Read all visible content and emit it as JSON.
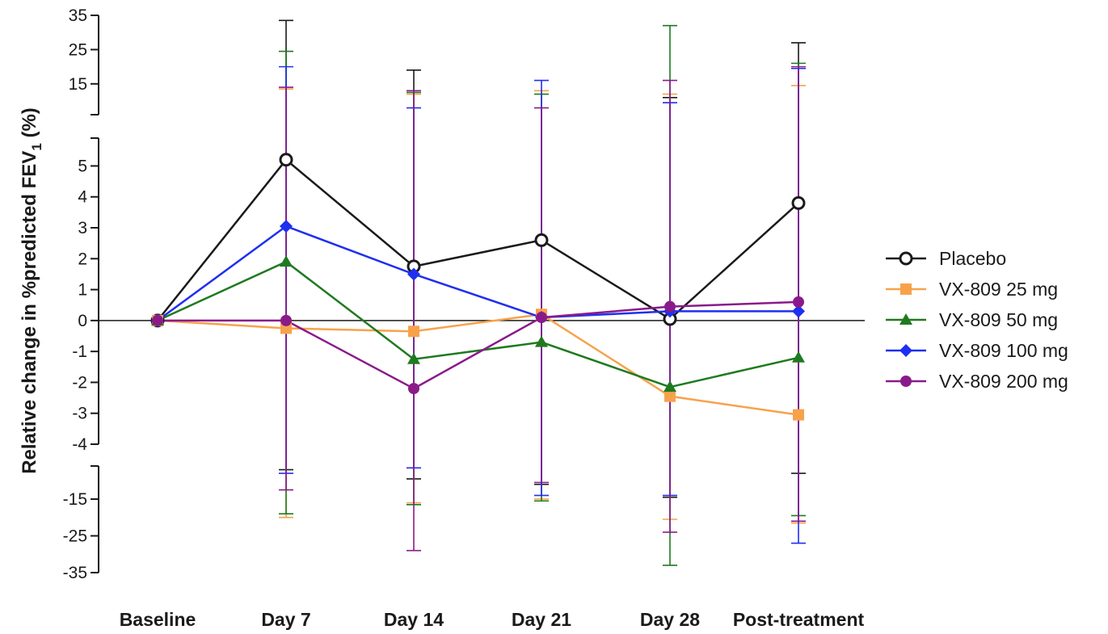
{
  "chart_data": {
    "type": "line",
    "ylabel": "Relative change in %predicted FEV",
    "ylabel_subscript": "1",
    "ylabel_suffix": " (%)",
    "categories": [
      "Baseline",
      "Day 7",
      "Day 14",
      "Day 21",
      "Day 28",
      "Post-treatment"
    ],
    "y_axis_broken": true,
    "y_segments": [
      {
        "range": [
          6,
          35
        ],
        "ticks": [
          15,
          25,
          35
        ]
      },
      {
        "range": [
          -4,
          5.9
        ],
        "ticks": [
          -4,
          -3,
          -2,
          -1,
          0,
          1,
          2,
          3,
          4,
          5
        ]
      },
      {
        "range": [
          -35,
          -6
        ],
        "ticks": [
          -15,
          -25,
          -35
        ]
      }
    ],
    "zero_line": true,
    "legend_position": "right",
    "series": [
      {
        "name": "Placebo",
        "color": "#1a1a1a",
        "marker": "open-circle",
        "values": [
          0,
          5.2,
          1.75,
          2.6,
          0.05,
          3.8
        ],
        "error_upper": [
          null,
          33.5,
          19,
          null,
          11,
          27
        ],
        "error_lower": [
          null,
          -7,
          -9.5,
          -11,
          -14.5,
          -8
        ]
      },
      {
        "name": "VX-809 25 mg",
        "color": "#f7a24b",
        "marker": "square",
        "values": [
          0,
          -0.25,
          -0.35,
          0.2,
          -2.45,
          -3.05
        ],
        "error_upper": [
          null,
          13.5,
          12,
          13,
          12,
          14.5
        ],
        "error_lower": [
          null,
          -20,
          -16,
          -15,
          -20.5,
          -21.5
        ]
      },
      {
        "name": "VX-809 50 mg",
        "color": "#1f7a1f",
        "marker": "triangle",
        "values": [
          0,
          1.9,
          -1.25,
          -0.7,
          -2.15,
          -1.2
        ],
        "error_upper": [
          null,
          24.5,
          12.5,
          12,
          32,
          21
        ],
        "error_lower": [
          null,
          -19,
          -16.5,
          -15.5,
          -33,
          -19.5
        ]
      },
      {
        "name": "VX-809 100 mg",
        "color": "#1f2ff0",
        "marker": "diamond",
        "values": [
          0,
          3.05,
          1.5,
          0.1,
          0.3,
          0.3
        ],
        "error_upper": [
          null,
          20,
          8,
          16,
          9.5,
          19.5
        ],
        "error_lower": [
          null,
          -8,
          -6.5,
          -14,
          -14,
          -27
        ]
      },
      {
        "name": "VX-809 200 mg",
        "color": "#8a1a8a",
        "marker": "circle",
        "values": [
          0,
          0,
          -2.2,
          0.1,
          0.45,
          0.6
        ],
        "error_upper": [
          null,
          14,
          13,
          8,
          16,
          20
        ],
        "error_lower": [
          null,
          -12.5,
          -29,
          -10.5,
          -24,
          -21
        ]
      }
    ]
  }
}
